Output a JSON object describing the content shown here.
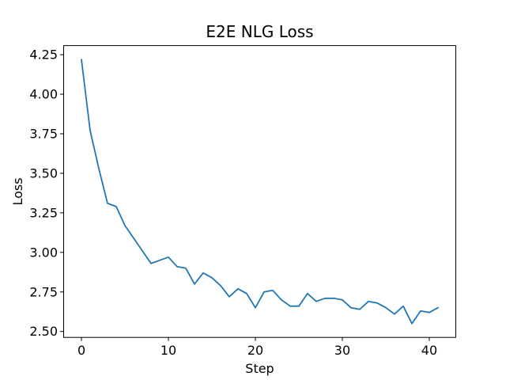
{
  "figure": {
    "background": "#ffffff"
  },
  "chart_data": {
    "type": "line",
    "title": "E2E NLG Loss",
    "xlabel": "Step",
    "ylabel": "Loss",
    "x": [
      0,
      1,
      2,
      3,
      4,
      5,
      6,
      7,
      8,
      9,
      10,
      11,
      12,
      13,
      14,
      15,
      16,
      17,
      18,
      19,
      20,
      21,
      22,
      23,
      24,
      25,
      26,
      27,
      28,
      29,
      30,
      31,
      32,
      33,
      34,
      35,
      36,
      37,
      38,
      39,
      40,
      41
    ],
    "values": [
      4.22,
      3.77,
      3.53,
      3.31,
      3.29,
      3.17,
      3.09,
      3.01,
      2.93,
      2.95,
      2.97,
      2.91,
      2.9,
      2.8,
      2.87,
      2.84,
      2.79,
      2.72,
      2.77,
      2.74,
      2.65,
      2.75,
      2.76,
      2.7,
      2.66,
      2.66,
      2.74,
      2.69,
      2.71,
      2.71,
      2.7,
      2.65,
      2.64,
      2.69,
      2.68,
      2.65,
      2.61,
      2.66,
      2.55,
      2.63,
      2.62,
      2.65
    ],
    "xlim": [
      -2.05,
      43.05
    ],
    "ylim": [
      2.4625,
      4.3075
    ],
    "xticks": [
      0,
      10,
      20,
      30,
      40
    ],
    "xtick_labels": [
      "0",
      "10",
      "20",
      "30",
      "40"
    ],
    "yticks": [
      2.5,
      2.75,
      3.0,
      3.25,
      3.5,
      3.75,
      4.0,
      4.25
    ],
    "ytick_labels": [
      "2.50",
      "2.75",
      "3.00",
      "3.25",
      "3.50",
      "3.75",
      "4.00",
      "4.25"
    ],
    "line_color": "#1f77b4",
    "axis_color": "#000000",
    "grid": false,
    "legend_position": "none"
  }
}
